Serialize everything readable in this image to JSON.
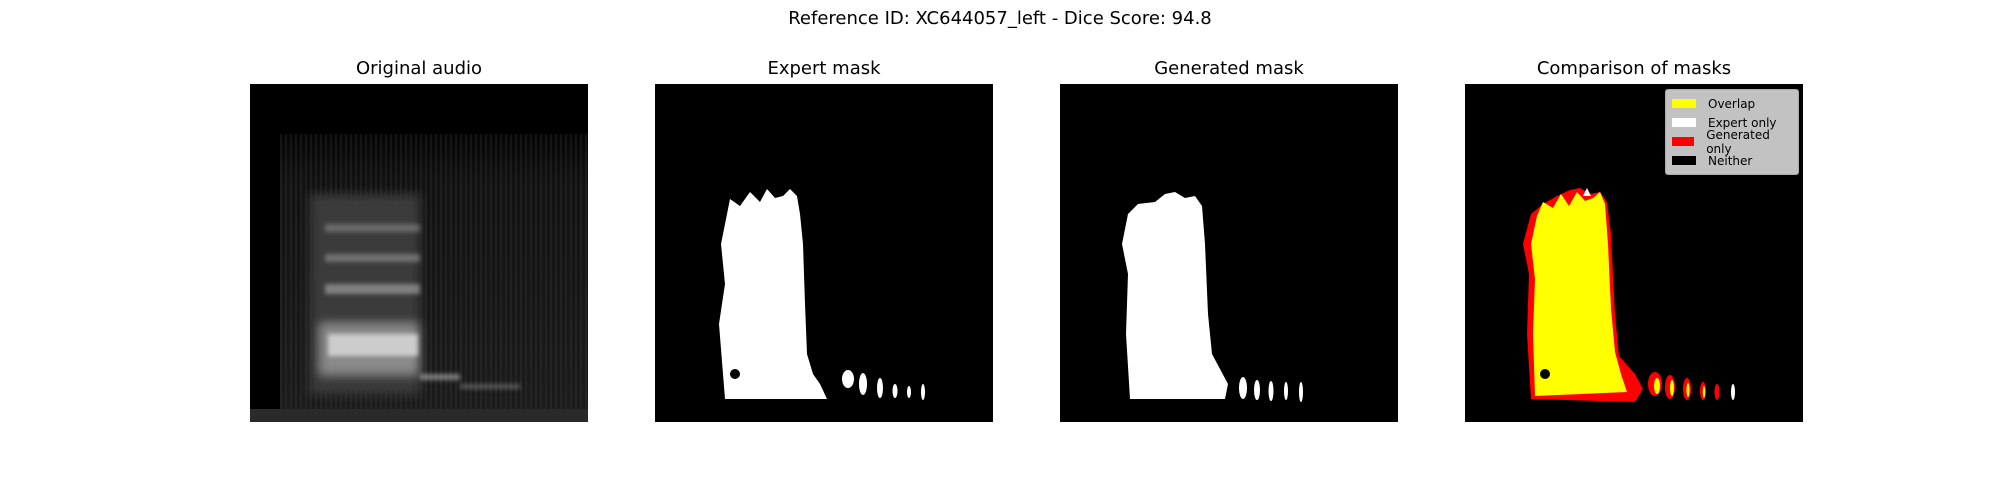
{
  "suptitle": "Reference ID: XC644057_left - Dice Score: 94.8",
  "panels": [
    {
      "title": "Original audio"
    },
    {
      "title": "Expert mask"
    },
    {
      "title": "Generated mask"
    },
    {
      "title": "Comparison of masks"
    }
  ],
  "legend": [
    {
      "label": "Overlap",
      "color": "#ffff00"
    },
    {
      "label": "Expert only",
      "color": "#ffffff"
    },
    {
      "label": "Generated only",
      "color": "#ff0000"
    },
    {
      "label": "Neither",
      "color": "#000000"
    }
  ],
  "chart_data": {
    "type": "heatmap",
    "title": "Reference ID: XC644057_left - Dice Score: 94.8",
    "subplots": [
      "Original audio",
      "Expert mask",
      "Generated mask",
      "Comparison of masks"
    ],
    "dice_score": 94.8,
    "legend_location": "top-right"
  }
}
